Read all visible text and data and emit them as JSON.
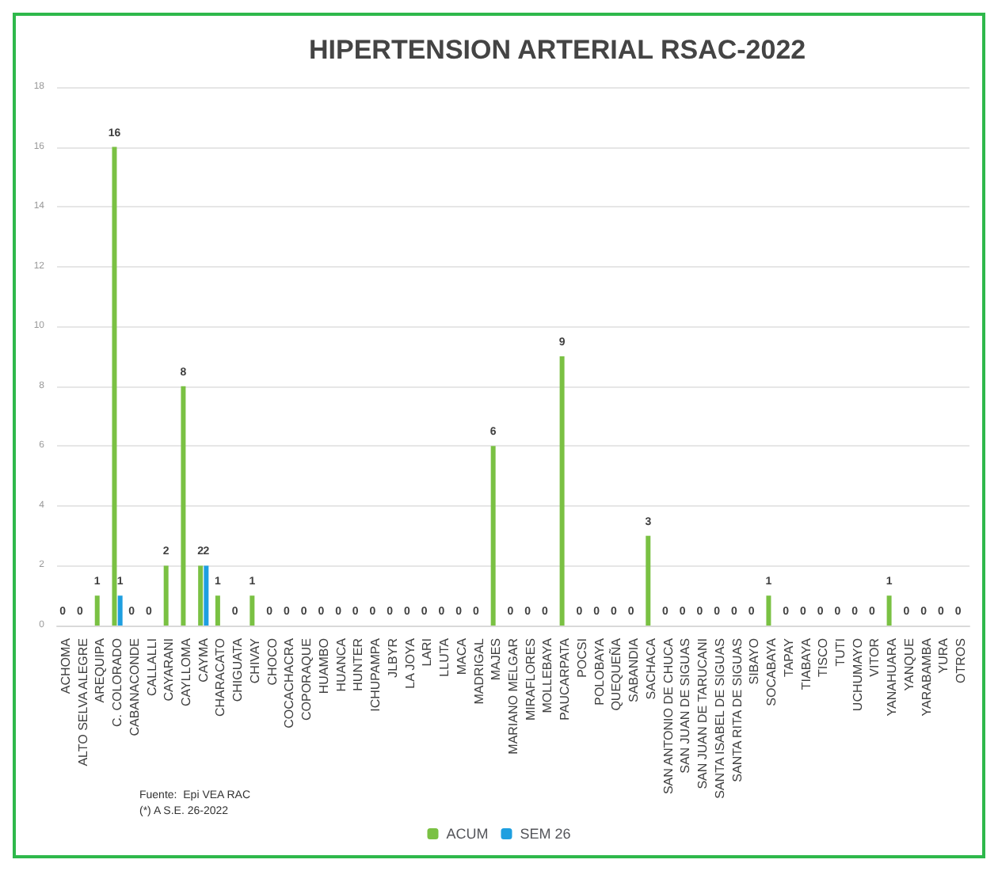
{
  "chart_data": {
    "type": "bar",
    "title": "HIPERTENSION ARTERIAL RSAC-2022",
    "categories": [
      "ACHOMA",
      "ALTO SELVA ALEGRE",
      "AREQUIPA",
      "C. COLORADO",
      "CABANACONDE",
      "CALLALLI",
      "CAYARANI",
      "CAYLLOMA",
      "CAYMA",
      "CHARACATO",
      "CHIGUATA",
      "CHIVAY",
      "CHOCO",
      "COCACHACRA",
      "COPORAQUE",
      "HUAMBO",
      "HUANCA",
      "HUNTER",
      "ICHUPAMPA",
      "JLBYR",
      "LA JOYA",
      "LARI",
      "LLUTA",
      "MACA",
      "MADRIGAL",
      "MAJES",
      "MARIANO MELGAR",
      "MIRAFLORES",
      "MOLLEBAYA",
      "PAUCARPATA",
      "POCSI",
      "POLOBAYA",
      "QUEQUEÑA",
      "SABANDIA",
      "SACHACA",
      "SAN ANTONIO DE CHUCA",
      "SAN JUAN DE SIGUAS",
      "SAN JUAN DE TARUCANI",
      "SANTA ISABEL DE SIGUAS",
      "SANTA RITA DE SIGUAS",
      "SIBAYO",
      "SOCABAYA",
      "TAPAY",
      "TIABAYA",
      "TISCO",
      "TUTI",
      "UCHUMAYO",
      "VITOR",
      "YANAHUARA",
      "YANQUE",
      "YARABAMBA",
      "YURA",
      "OTROS"
    ],
    "series": [
      {
        "name": "ACUM",
        "color": "#7ac143",
        "values": [
          0,
          0,
          1,
          16,
          0,
          0,
          2,
          8,
          2,
          1,
          0,
          1,
          0,
          0,
          0,
          0,
          0,
          0,
          0,
          0,
          0,
          0,
          0,
          0,
          0,
          6,
          0,
          0,
          0,
          9,
          0,
          0,
          0,
          0,
          3,
          0,
          0,
          0,
          0,
          0,
          0,
          1,
          0,
          0,
          0,
          0,
          0,
          0,
          1,
          0,
          0,
          0,
          0
        ],
        "value_labels": [
          "0",
          "0",
          "1",
          "16",
          "0",
          "0",
          "2",
          "8",
          "2",
          "1",
          "0",
          "1",
          "0",
          "0",
          "0",
          "0",
          "0",
          "0",
          "0",
          "0",
          "0",
          "0",
          "0",
          "0",
          "0",
          "6",
          "0",
          "0",
          "0",
          "9",
          "0",
          "0",
          "0",
          "0",
          "3",
          "0",
          "0",
          "0",
          "0",
          "0",
          "0",
          "1",
          "0",
          "0",
          "0",
          "0",
          "0",
          "0",
          "1",
          "0",
          "0",
          "0",
          "0"
        ]
      },
      {
        "name": "SEM 26",
        "color": "#1e9fe0",
        "values": [
          0,
          0,
          0,
          1,
          0,
          0,
          0,
          0,
          2,
          0,
          0,
          0,
          0,
          0,
          0,
          0,
          0,
          0,
          0,
          0,
          0,
          0,
          0,
          0,
          0,
          0,
          0,
          0,
          0,
          0,
          0,
          0,
          0,
          0,
          0,
          0,
          0,
          0,
          0,
          0,
          0,
          0,
          0,
          0,
          0,
          0,
          0,
          0,
          0,
          0,
          0,
          0,
          0
        ],
        "value_labels": [
          null,
          null,
          null,
          "1",
          null,
          null,
          null,
          null,
          "2",
          null,
          null,
          null,
          null,
          null,
          null,
          null,
          null,
          null,
          null,
          null,
          null,
          null,
          null,
          null,
          null,
          null,
          null,
          null,
          null,
          null,
          null,
          null,
          null,
          null,
          null,
          null,
          null,
          null,
          null,
          null,
          null,
          null,
          null,
          null,
          null,
          null,
          null,
          null,
          null,
          null,
          null,
          null,
          null
        ]
      }
    ],
    "ylim": [
      0,
      18
    ],
    "yticks": [
      0,
      2,
      4,
      6,
      8,
      10,
      12,
      14,
      16,
      18
    ],
    "grid": "y",
    "legend": "bottom",
    "annotations": [
      "Fuente:  Epi VEA RAC",
      "(*) A S.E. 26-2022"
    ]
  }
}
